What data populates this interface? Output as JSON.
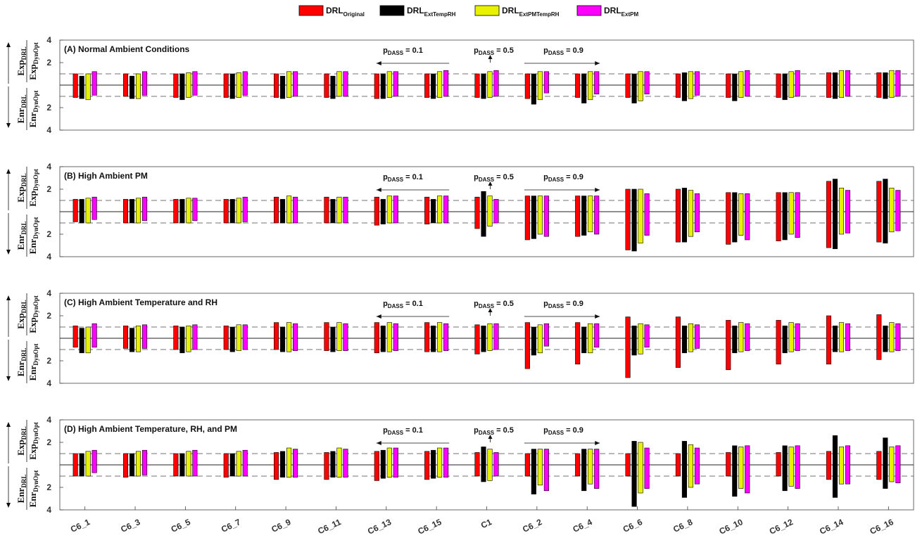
{
  "colors": {
    "DRL_Original": "#ff0000",
    "DRL_ExtTempRH": "#000000",
    "DRL_ExtPMTempRH": "#e8f200",
    "DRL_ExtPM": "#ff00ff"
  },
  "legend": [
    {
      "key": "DRL_Original",
      "main": "DRL",
      "sub": "Original"
    },
    {
      "key": "DRL_ExtTempRH",
      "main": "DRL",
      "sub": "ExtTempRH"
    },
    {
      "key": "DRL_ExtPMTempRH",
      "main": "DRL",
      "sub": "ExtPMTempRH"
    },
    {
      "key": "DRL_ExtPM",
      "main": "DRL",
      "sub": "ExtPM"
    }
  ],
  "ylabel_top": {
    "num_main": "Exp",
    "num_sub": "DRL",
    "den_main": "Exp",
    "den_sub": "DynOpt"
  },
  "ylabel_bottom": {
    "num_main": "Enr",
    "num_sub": "DRL",
    "den_main": "Enr",
    "den_sub": "DynOpt"
  },
  "annotations": {
    "p1": {
      "main": "p",
      "sub": "DASS",
      "val": " = 0.1"
    },
    "p5": {
      "main": "p",
      "sub": "DASS",
      "val": " = 0.5"
    },
    "p9": {
      "main": "p",
      "sub": "DASS",
      "val": " = 0.9"
    }
  },
  "chart_data": {
    "type": "bar",
    "categories": [
      "C6_1",
      "C6_3",
      "C6_5",
      "C6_7",
      "C6_9",
      "C6_11",
      "C6_13",
      "C6_15",
      "C1",
      "C6_2",
      "C6_4",
      "C6_6",
      "C6_8",
      "C6_10",
      "C6_12",
      "C6_14",
      "C6_16"
    ],
    "y_ticks_top": [
      "4",
      "2"
    ],
    "y_ticks_bottom": [
      "2",
      "4"
    ],
    "ylim": [
      -4,
      4
    ],
    "reference_lines": [
      1,
      -1
    ],
    "panels": [
      {
        "title": "(A) Normal Ambient Conditions",
        "series": [
          {
            "name": "DRL_Original",
            "up": [
              1,
              1,
              1,
              1,
              1,
              1,
              1,
              1,
              1,
              1,
              1,
              1,
              1,
              1,
              1,
              1.1,
              1.1
            ],
            "down": [
              1.1,
              1.0,
              1.1,
              1.1,
              1.1,
              1.1,
              1.2,
              1.1,
              1.1,
              1.2,
              1.1,
              1.1,
              1.1,
              1.1,
              1.1,
              1.1,
              1.1
            ]
          },
          {
            "name": "DRL_ExtTempRH",
            "up": [
              0.8,
              0.8,
              1,
              1,
              0.8,
              0.8,
              1,
              1,
              1,
              1,
              1,
              1,
              1.1,
              1,
              1,
              1.1,
              1.1
            ],
            "down": [
              1.2,
              1.2,
              1.3,
              1.2,
              1.2,
              1.2,
              1.2,
              1.2,
              1.2,
              1.7,
              1.6,
              1.6,
              1.4,
              1.4,
              1.3,
              1.2,
              1.2
            ]
          },
          {
            "name": "DRL_ExtPMTempRH",
            "up": [
              1,
              1,
              1.1,
              1.1,
              1.2,
              1.2,
              1.2,
              1.2,
              1.2,
              1.2,
              1.2,
              1.2,
              1.2,
              1.2,
              1.2,
              1.3,
              1.3
            ],
            "down": [
              1.3,
              1.2,
              1.1,
              1.1,
              1.1,
              1.0,
              1.1,
              1.1,
              1.1,
              1.3,
              1.3,
              1.4,
              1.2,
              1.1,
              1.1,
              1.1,
              1.1
            ]
          },
          {
            "name": "DRL_ExtPM",
            "up": [
              1.2,
              1.2,
              1.2,
              1.2,
              1.2,
              1.2,
              1.2,
              1.3,
              1.3,
              1.2,
              1.2,
              1.2,
              1.2,
              1.3,
              1.3,
              1.3,
              1.3
            ],
            "down": [
              0.9,
              0.9,
              0.9,
              0.9,
              1.0,
              1.0,
              1.0,
              1.0,
              1.0,
              0.7,
              0.8,
              0.8,
              0.9,
              1.0,
              1.0,
              1.0,
              1.0
            ]
          }
        ]
      },
      {
        "title": "(B) High Ambient PM",
        "series": [
          {
            "name": "DRL_Original",
            "up": [
              1.1,
              1.1,
              1.1,
              1.1,
              1.3,
              1.3,
              1.3,
              1.3,
              1.3,
              1.4,
              1.4,
              2.0,
              2.0,
              1.7,
              1.7,
              2.7,
              2.7
            ],
            "down": [
              0.9,
              1.0,
              1.0,
              1.0,
              1.0,
              1.0,
              1.2,
              1.1,
              1.5,
              2.5,
              2.2,
              3.4,
              2.7,
              2.9,
              2.6,
              3.2,
              2.7
            ]
          },
          {
            "name": "DRL_ExtTempRH",
            "up": [
              1.1,
              1.1,
              1.1,
              1.1,
              1.1,
              1.1,
              1.1,
              1.1,
              1.8,
              1.4,
              1.4,
              2.0,
              2.1,
              1.7,
              1.7,
              2.9,
              2.9
            ],
            "down": [
              1.0,
              1.0,
              1.0,
              1.0,
              1.0,
              1.0,
              1.1,
              1.0,
              2.2,
              2.4,
              2.1,
              3.5,
              2.7,
              2.7,
              2.5,
              3.3,
              2.8
            ]
          },
          {
            "name": "DRL_ExtPMTempRH",
            "up": [
              1.2,
              1.2,
              1.2,
              1.2,
              1.4,
              1.3,
              1.4,
              1.4,
              1.4,
              1.4,
              1.4,
              2.0,
              1.9,
              1.6,
              1.7,
              2.1,
              2.1
            ],
            "down": [
              1.0,
              1.0,
              1.0,
              1.0,
              1.0,
              1.0,
              1.0,
              1.0,
              1.3,
              2.0,
              1.8,
              2.8,
              2.2,
              2.1,
              2.0,
              2.0,
              1.8
            ]
          },
          {
            "name": "DRL_ExtPM",
            "up": [
              1.3,
              1.3,
              1.2,
              1.3,
              1.3,
              1.3,
              1.4,
              1.4,
              1.1,
              1.4,
              1.4,
              1.6,
              1.6,
              1.6,
              1.7,
              1.9,
              1.9
            ],
            "down": [
              0.7,
              0.8,
              0.8,
              0.9,
              1.0,
              1.0,
              1.0,
              1.0,
              1.0,
              2.2,
              2.0,
              2.1,
              1.8,
              2.5,
              2.3,
              1.9,
              1.7
            ]
          }
        ]
      },
      {
        "title": "(C) High Ambient Temperature and RH",
        "series": [
          {
            "name": "DRL_Original",
            "up": [
              1.1,
              1.1,
              1.1,
              1.1,
              1.4,
              1.4,
              1.4,
              1.4,
              1.2,
              1.4,
              1.4,
              1.9,
              1.9,
              1.6,
              1.6,
              2.0,
              2.1
            ],
            "down": [
              0.8,
              0.9,
              1.0,
              1.0,
              1.0,
              1.1,
              1.3,
              1.2,
              1.4,
              2.7,
              2.3,
              3.5,
              2.6,
              2.8,
              2.3,
              2.3,
              1.9
            ]
          },
          {
            "name": "DRL_ExtTempRH",
            "up": [
              0.9,
              0.9,
              1.0,
              1.0,
              1.0,
              1.0,
              1.1,
              1.1,
              1.1,
              1.0,
              1.0,
              1.1,
              1.1,
              1.1,
              1.1,
              1.1,
              1.1
            ],
            "down": [
              1.3,
              1.2,
              1.3,
              1.2,
              1.2,
              1.2,
              1.2,
              1.2,
              1.2,
              1.5,
              1.3,
              1.5,
              1.3,
              1.3,
              1.3,
              1.2,
              1.2
            ]
          },
          {
            "name": "DRL_ExtPMTempRH",
            "up": [
              1.0,
              1.1,
              1.1,
              1.2,
              1.4,
              1.4,
              1.4,
              1.4,
              1.3,
              1.2,
              1.3,
              1.3,
              1.3,
              1.4,
              1.4,
              1.4,
              1.4
            ],
            "down": [
              1.3,
              1.2,
              1.2,
              1.1,
              1.2,
              1.1,
              1.2,
              1.2,
              1.1,
              1.3,
              1.3,
              1.4,
              1.2,
              1.2,
              1.2,
              1.2,
              1.2
            ]
          },
          {
            "name": "DRL_ExtPM",
            "up": [
              1.3,
              1.2,
              1.2,
              1.2,
              1.3,
              1.3,
              1.3,
              1.3,
              1.3,
              1.3,
              1.3,
              1.2,
              1.2,
              1.3,
              1.3,
              1.3,
              1.3
            ],
            "down": [
              0.8,
              0.9,
              1.0,
              1.0,
              1.1,
              1.1,
              1.1,
              1.1,
              1.0,
              0.7,
              0.8,
              0.8,
              0.9,
              1.1,
              1.1,
              1.1,
              1.1
            ]
          }
        ]
      },
      {
        "title": "(D) High Ambient Temperature, RH, and PM",
        "series": [
          {
            "name": "DRL_Original",
            "up": [
              1.0,
              1.0,
              1.0,
              1.0,
              1.1,
              1.1,
              1.2,
              1.2,
              1.1,
              1.0,
              1.0,
              1.0,
              1.0,
              1.1,
              1.1,
              1.2,
              1.2
            ],
            "down": [
              1.0,
              1.1,
              1.0,
              1.1,
              1.3,
              1.3,
              1.4,
              1.3,
              1.0,
              1.0,
              1.0,
              1.0,
              1.0,
              1.0,
              1.0,
              1.3,
              1.3
            ]
          },
          {
            "name": "DRL_ExtTempRH",
            "up": [
              1.0,
              1.0,
              1.0,
              1.0,
              1.2,
              1.2,
              1.3,
              1.3,
              1.6,
              1.4,
              1.4,
              2.1,
              2.1,
              1.7,
              1.7,
              2.6,
              2.4
            ],
            "down": [
              1.0,
              1.0,
              1.0,
              1.0,
              1.1,
              1.1,
              1.2,
              1.2,
              1.5,
              2.6,
              2.3,
              3.7,
              2.9,
              2.8,
              2.3,
              2.9,
              2.1
            ]
          },
          {
            "name": "DRL_ExtPMTempRH",
            "up": [
              1.2,
              1.2,
              1.2,
              1.2,
              1.5,
              1.5,
              1.5,
              1.5,
              1.4,
              1.4,
              1.4,
              2.0,
              1.8,
              1.6,
              1.6,
              1.6,
              1.6
            ],
            "down": [
              1.0,
              1.0,
              1.0,
              1.0,
              1.1,
              1.1,
              1.1,
              1.1,
              1.4,
              1.8,
              1.7,
              2.5,
              2.0,
              2.1,
              1.9,
              1.7,
              1.5
            ]
          },
          {
            "name": "DRL_ExtPM",
            "up": [
              1.3,
              1.3,
              1.3,
              1.3,
              1.4,
              1.4,
              1.5,
              1.5,
              1.1,
              1.4,
              1.4,
              1.5,
              1.5,
              1.7,
              1.7,
              1.7,
              1.7
            ],
            "down": [
              0.7,
              0.9,
              1.0,
              1.0,
              1.1,
              1.1,
              1.1,
              1.1,
              1.0,
              2.3,
              2.1,
              2.1,
              1.7,
              2.5,
              2.1,
              1.7,
              1.6
            ]
          }
        ]
      }
    ]
  }
}
